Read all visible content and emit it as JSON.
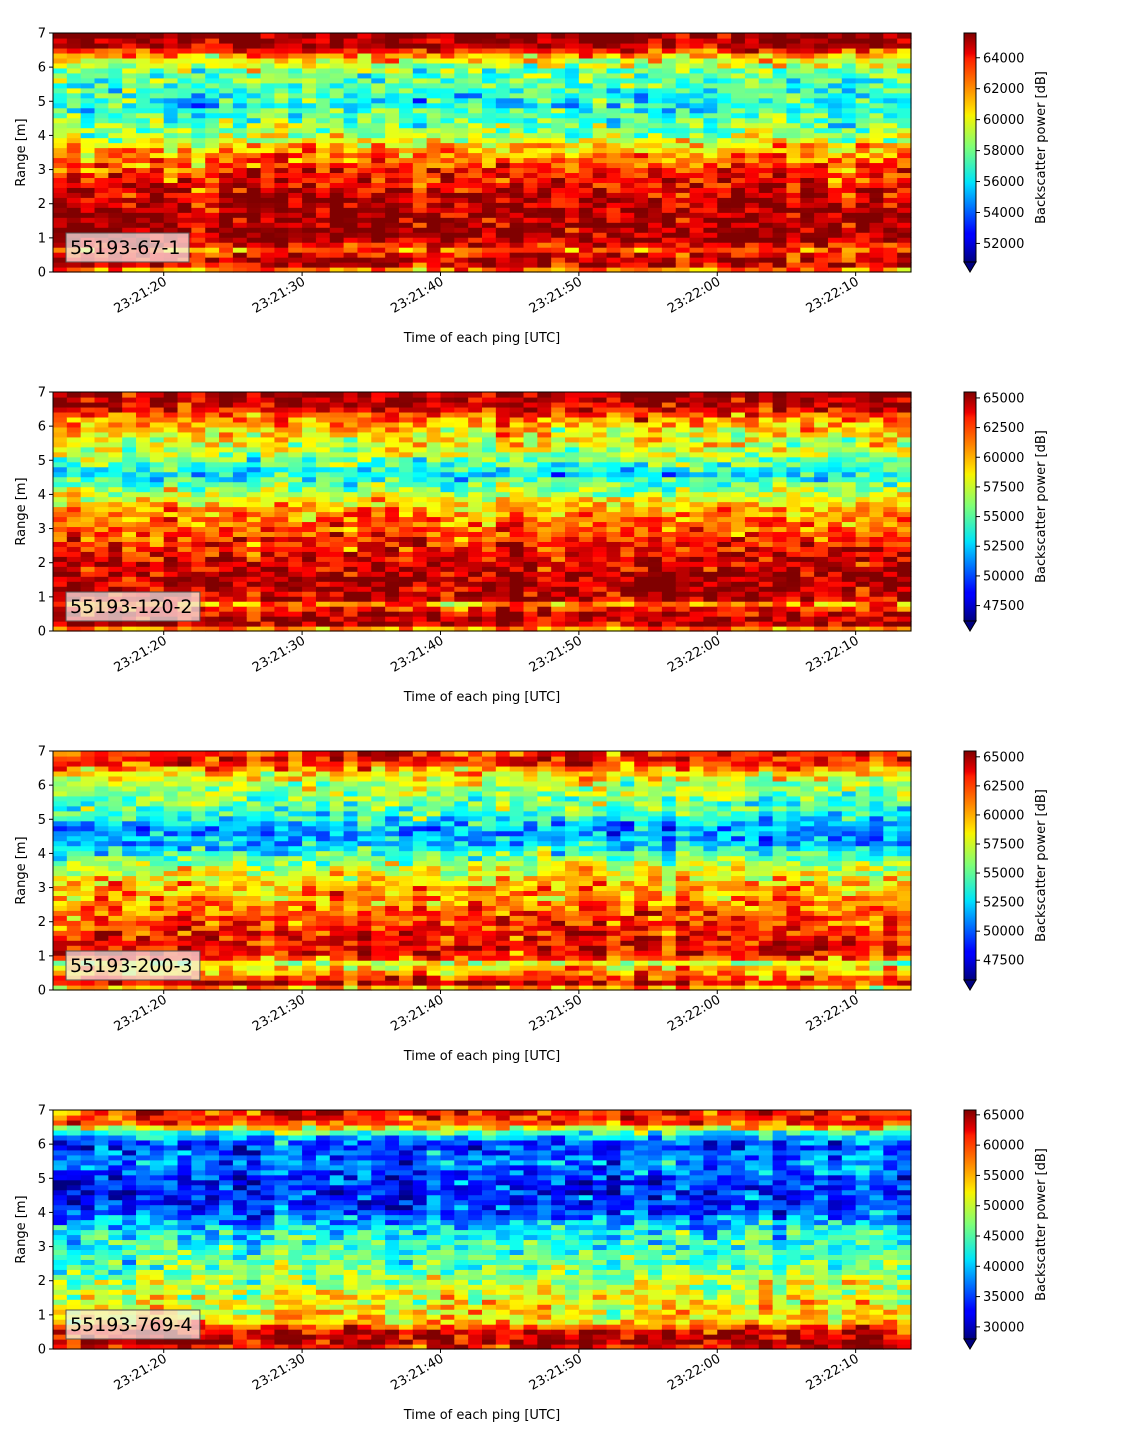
{
  "chart_data": [
    {
      "type": "heatmap",
      "panel_label": "55193-67-1",
      "xlabel": "Time of each ping [UTC]",
      "ylabel": "Range [m]",
      "x_range": [
        "23:21:12",
        "23:22:14"
      ],
      "x_ticks": [
        "23:21:20",
        "23:21:30",
        "23:21:40",
        "23:21:50",
        "23:22:00",
        "23:22:10"
      ],
      "ylim": [
        0,
        7
      ],
      "y_ticks": [
        0,
        1,
        2,
        3,
        4,
        5,
        6,
        7
      ],
      "colorbar": {
        "label": "Backscatter power [dB]",
        "cmap": "jet",
        "vmin": 50800,
        "vmax": 65600,
        "ticks": [
          52000,
          54000,
          56000,
          58000,
          60000,
          62000,
          64000
        ],
        "extend": "min"
      },
      "range_profile": [
        {
          "r": 0.0,
          "v": 60500
        },
        {
          "r": 0.25,
          "v": 64800
        },
        {
          "r": 0.55,
          "v": 63800
        },
        {
          "r": 0.7,
          "v": 61800
        },
        {
          "r": 0.85,
          "v": 65000
        },
        {
          "r": 1.2,
          "v": 65200
        },
        {
          "r": 2.0,
          "v": 65000
        },
        {
          "r": 2.6,
          "v": 64000
        },
        {
          "r": 3.0,
          "v": 63000
        },
        {
          "r": 3.5,
          "v": 61500
        },
        {
          "r": 4.0,
          "v": 59000
        },
        {
          "r": 4.5,
          "v": 57500
        },
        {
          "r": 5.0,
          "v": 56500
        },
        {
          "r": 5.5,
          "v": 57500
        },
        {
          "r": 6.0,
          "v": 58500
        },
        {
          "r": 6.4,
          "v": 61500
        },
        {
          "r": 6.6,
          "v": 65200
        },
        {
          "r": 7.0,
          "v": 65500
        }
      ]
    },
    {
      "type": "heatmap",
      "panel_label": "55193-120-2",
      "xlabel": "Time of each ping [UTC]",
      "ylabel": "Range [m]",
      "x_range": [
        "23:21:12",
        "23:22:14"
      ],
      "x_ticks": [
        "23:21:20",
        "23:21:30",
        "23:21:40",
        "23:21:50",
        "23:22:00",
        "23:22:10"
      ],
      "ylim": [
        0,
        7
      ],
      "y_ticks": [
        0,
        1,
        2,
        3,
        4,
        5,
        6,
        7
      ],
      "colorbar": {
        "label": "Backscatter power [dB]",
        "cmap": "jet",
        "vmin": 46200,
        "vmax": 65500,
        "ticks": [
          47500,
          50000,
          52500,
          55000,
          57500,
          60000,
          62500,
          65000
        ],
        "extend": "min"
      },
      "range_profile": [
        {
          "r": 0.0,
          "v": 58000
        },
        {
          "r": 0.2,
          "v": 64500
        },
        {
          "r": 0.6,
          "v": 64000
        },
        {
          "r": 0.75,
          "v": 59000
        },
        {
          "r": 0.95,
          "v": 64500
        },
        {
          "r": 1.5,
          "v": 64800
        },
        {
          "r": 2.2,
          "v": 63500
        },
        {
          "r": 3.0,
          "v": 61500
        },
        {
          "r": 3.6,
          "v": 60000
        },
        {
          "r": 4.2,
          "v": 56000
        },
        {
          "r": 4.6,
          "v": 53000
        },
        {
          "r": 5.2,
          "v": 57000
        },
        {
          "r": 5.8,
          "v": 58500
        },
        {
          "r": 6.3,
          "v": 61000
        },
        {
          "r": 6.6,
          "v": 64500
        },
        {
          "r": 7.0,
          "v": 65000
        }
      ]
    },
    {
      "type": "heatmap",
      "panel_label": "55193-200-3",
      "xlabel": "Time of each ping [UTC]",
      "ylabel": "Range [m]",
      "x_range": [
        "23:21:12",
        "23:22:14"
      ],
      "x_ticks": [
        "23:21:20",
        "23:21:30",
        "23:21:40",
        "23:21:50",
        "23:22:00",
        "23:22:10"
      ],
      "ylim": [
        0,
        7
      ],
      "y_ticks": [
        0,
        1,
        2,
        3,
        4,
        5,
        6,
        7
      ],
      "colorbar": {
        "label": "Backscatter power [dB]",
        "cmap": "jet",
        "vmin": 45800,
        "vmax": 65500,
        "ticks": [
          47500,
          50000,
          52500,
          55000,
          57500,
          60000,
          62500,
          65000
        ],
        "extend": "min"
      },
      "range_profile": [
        {
          "r": 0.0,
          "v": 57000
        },
        {
          "r": 0.2,
          "v": 64000
        },
        {
          "r": 0.5,
          "v": 60000
        },
        {
          "r": 0.8,
          "v": 57500
        },
        {
          "r": 1.0,
          "v": 63500
        },
        {
          "r": 1.6,
          "v": 63000
        },
        {
          "r": 2.2,
          "v": 61500
        },
        {
          "r": 3.0,
          "v": 59500
        },
        {
          "r": 3.6,
          "v": 57500
        },
        {
          "r": 4.3,
          "v": 52000
        },
        {
          "r": 4.7,
          "v": 51000
        },
        {
          "r": 5.3,
          "v": 55000
        },
        {
          "r": 6.0,
          "v": 56500
        },
        {
          "r": 6.4,
          "v": 59000
        },
        {
          "r": 6.7,
          "v": 63000
        },
        {
          "r": 7.0,
          "v": 62500
        }
      ]
    },
    {
      "type": "heatmap",
      "panel_label": "55193-769-4",
      "xlabel": "Time of each ping [UTC]",
      "ylabel": "Range [m]",
      "x_range": [
        "23:21:12",
        "23:22:14"
      ],
      "x_ticks": [
        "23:21:20",
        "23:21:30",
        "23:21:40",
        "23:21:50",
        "23:22:00",
        "23:22:10"
      ],
      "ylim": [
        0,
        7
      ],
      "y_ticks": [
        0,
        1,
        2,
        3,
        4,
        5,
        6,
        7
      ],
      "colorbar": {
        "label": "Backscatter power [dB]",
        "cmap": "jet",
        "vmin": 28000,
        "vmax": 65800,
        "ticks": [
          30000,
          35000,
          40000,
          45000,
          50000,
          55000,
          60000,
          65000
        ],
        "extend": "min"
      },
      "range_profile": [
        {
          "r": 0.0,
          "v": 57000
        },
        {
          "r": 0.15,
          "v": 64500
        },
        {
          "r": 0.55,
          "v": 62500
        },
        {
          "r": 0.8,
          "v": 53000
        },
        {
          "r": 1.2,
          "v": 52000
        },
        {
          "r": 2.0,
          "v": 48500
        },
        {
          "r": 2.8,
          "v": 45000
        },
        {
          "r": 3.5,
          "v": 42000
        },
        {
          "r": 4.0,
          "v": 36000
        },
        {
          "r": 4.5,
          "v": 33500
        },
        {
          "r": 5.0,
          "v": 35000
        },
        {
          "r": 5.5,
          "v": 38000
        },
        {
          "r": 6.0,
          "v": 34000
        },
        {
          "r": 6.3,
          "v": 42000
        },
        {
          "r": 6.6,
          "v": 58000
        },
        {
          "r": 7.0,
          "v": 62000
        }
      ]
    }
  ]
}
